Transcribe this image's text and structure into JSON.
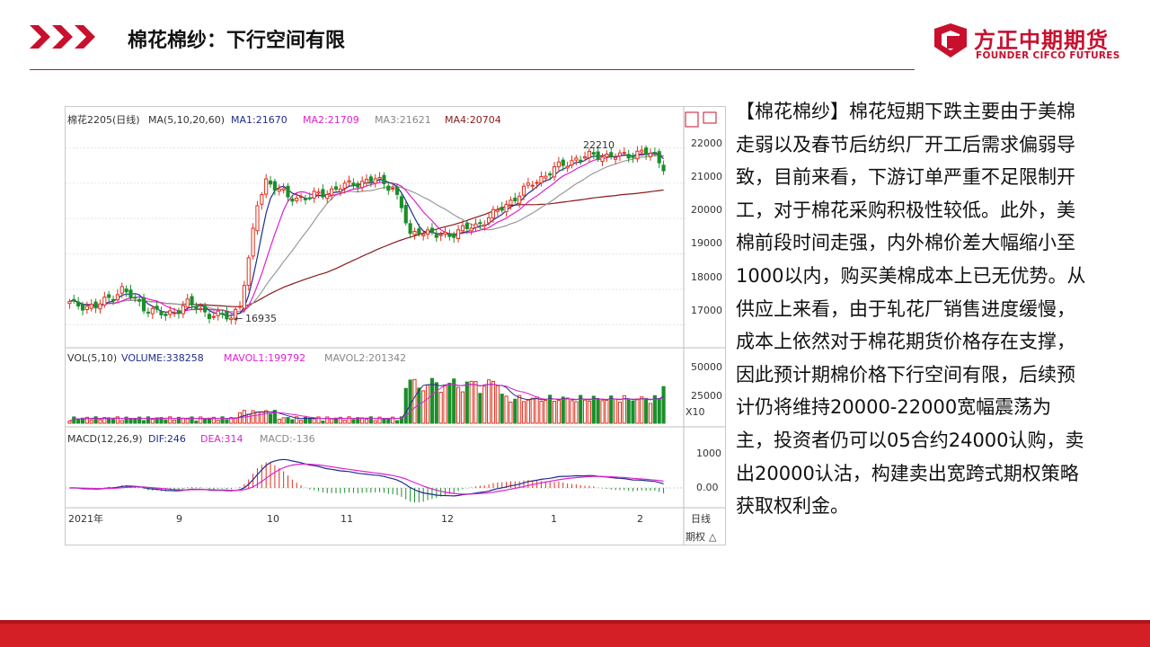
{
  "header": {
    "title": "棉花棉纱：下行空间有限",
    "logo_cn": "方正中期期货",
    "logo_en": "FOUNDER CIFCO FUTURES"
  },
  "colors": {
    "accent": "#c8102e",
    "footer": "#d41f26",
    "up": "#e0301e",
    "down": "#1a8f2a",
    "ma1": "#1f2d8c",
    "ma2": "#e020d0",
    "ma3": "#999999",
    "ma4": "#8b1a1a"
  },
  "chart_data": {
    "type": "candlestick",
    "main_label": "棉花2205(日线)",
    "ma_label": "MA(5,10,20,60)",
    "ma1": "MA1:21670",
    "ma2": "MA2:21709",
    "ma3": "MA3:21621",
    "ma4": "MA4:20704",
    "price_ticks": [
      "22000",
      "21000",
      "20000",
      "19000",
      "18000",
      "17000"
    ],
    "price_range": [
      16500,
      22600
    ],
    "annotation_high": "22210",
    "annotation_low": "16935",
    "vol_label": "VOL(5,10)",
    "volume": "VOLUME:338258",
    "mavol1": "MAVOL1:199792",
    "mavol2": "MAVOL2:201342",
    "vol_ticks": [
      "50000",
      "25000"
    ],
    "vol_unit": "X10",
    "macd_label": "MACD(12,26,9)",
    "dif": "DIF:246",
    "dea": "DEA:314",
    "macd": "MACD:-136",
    "macd_ticks": [
      "1000",
      "0.00"
    ],
    "time_labels": [
      "2021年",
      "9",
      "10",
      "11",
      "12",
      "1",
      "2"
    ],
    "period": "日线",
    "option": "期权",
    "close_keypoints": [
      [
        0,
        17600
      ],
      [
        6,
        17500
      ],
      [
        12,
        18000
      ],
      [
        17,
        17500
      ],
      [
        22,
        17250
      ],
      [
        27,
        17600
      ],
      [
        32,
        17300
      ],
      [
        37,
        17200
      ],
      [
        39,
        17600
      ],
      [
        41,
        18800
      ],
      [
        43,
        20400
      ],
      [
        45,
        21100
      ],
      [
        47,
        20900
      ],
      [
        50,
        20600
      ],
      [
        55,
        20600
      ],
      [
        60,
        20800
      ],
      [
        65,
        21000
      ],
      [
        70,
        21100
      ],
      [
        74,
        20900
      ],
      [
        76,
        20300
      ],
      [
        78,
        19500
      ],
      [
        80,
        19700
      ],
      [
        84,
        19500
      ],
      [
        88,
        19600
      ],
      [
        93,
        19800
      ],
      [
        98,
        20200
      ],
      [
        102,
        20600
      ],
      [
        106,
        21000
      ],
      [
        111,
        21400
      ],
      [
        116,
        21700
      ],
      [
        121,
        21800
      ],
      [
        126,
        21750
      ],
      [
        131,
        21900
      ],
      [
        134,
        21750
      ],
      [
        136,
        21500
      ]
    ]
  },
  "text": {
    "paragraph": "【棉花棉纱】棉花短期下跌主要由于美棉走弱以及春节后纺织厂开工后需求偏弱导致，目前来看，下游订单严重不足限制开工，对于棉花采购积极性较低。此外，美棉前段时间走强，内外棉价差大幅缩小至1000以内，购买美棉成本上已无优势。从供应上来看，由于轧花厂销售进度缓慢，成本上依然对于棉花期货价格存在支撑，因此预计期棉价格下行空间有限，后续预计仍将维持20000-22000宽幅震荡为主，投资者仍可以05合约24000认购，卖出20000认沽，构建卖出宽跨式期权策略获取权利金。"
  }
}
